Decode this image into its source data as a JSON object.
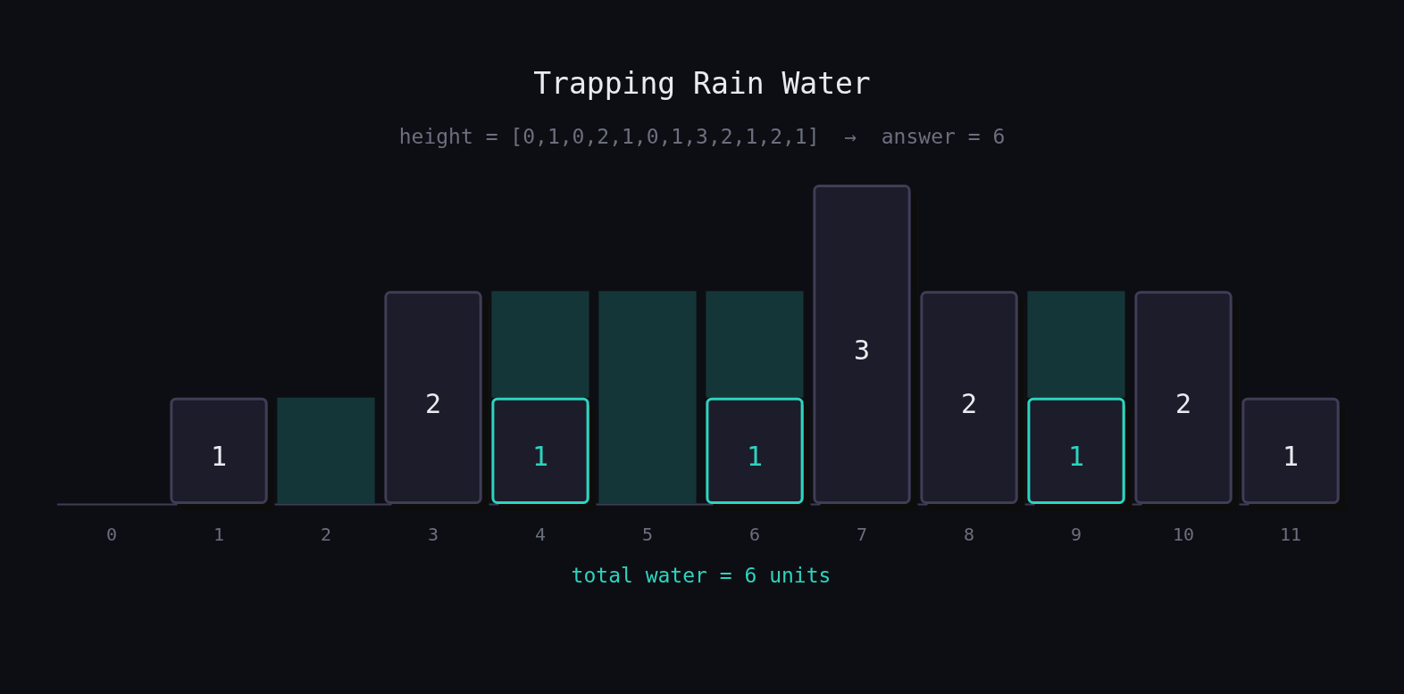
{
  "chart_data": {
    "type": "bar",
    "title": "Trapping Rain Water",
    "subtitle": "height = [0,1,0,2,1,0,1,3,2,1,2,1]  →  answer = 6",
    "categories": [
      "0",
      "1",
      "2",
      "3",
      "4",
      "5",
      "6",
      "7",
      "8",
      "9",
      "10",
      "11"
    ],
    "stacked": true,
    "series": [
      {
        "color": "#1c1b29",
        "values": [
          0,
          1,
          0,
          2,
          1,
          0,
          1,
          3,
          2,
          1,
          2,
          1
        ],
        "value_labels": [
          null,
          "1",
          null,
          "2",
          "1",
          null,
          "1",
          "3",
          "2",
          "1",
          "2",
          "1"
        ]
      },
      {
        "color": "#153638",
        "values": [
          0,
          0,
          1,
          0,
          1,
          2,
          1,
          0,
          0,
          1,
          0,
          0
        ]
      }
    ],
    "annotations": [
      "total water = 6 units"
    ]
  }
}
